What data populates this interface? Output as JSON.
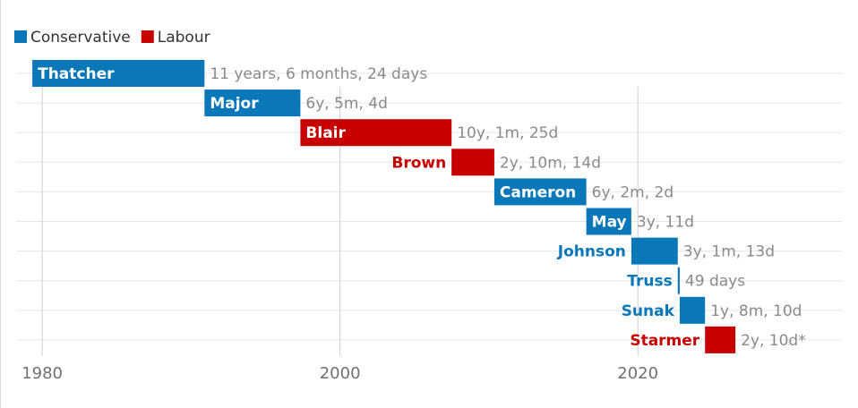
{
  "chart_data": {
    "type": "timeline",
    "legend": [
      {
        "name": "Conservative",
        "color": "#0a77b8"
      },
      {
        "name": "Labour",
        "color": "#c70000"
      }
    ],
    "categories": [
      "Thatcher",
      "Major",
      "Blair",
      "Brown",
      "Cameron",
      "May",
      "Johnson",
      "Truss",
      "Sunak",
      "Starmer"
    ],
    "start": [
      1979.34,
      1990.9,
      1997.34,
      2007.49,
      2010.36,
      2016.54,
      2019.56,
      2022.68,
      2022.81,
      2024.51
    ],
    "end": [
      1990.9,
      1997.34,
      2007.49,
      2010.36,
      2016.54,
      2019.56,
      2022.68,
      2022.81,
      2024.51,
      2026.55
    ],
    "colors": [
      "#0a77b8",
      "#0a77b8",
      "#c70000",
      "#c70000",
      "#0a77b8",
      "#0a77b8",
      "#0a77b8",
      "#0a77b8",
      "#0a77b8",
      "#c70000"
    ],
    "duration_labels": [
      "11 years, 6 months, 24 days",
      "6y, 5m, 4d",
      "10y, 1m, 25d",
      "2y, 10m, 14d",
      "6y, 2m, 2d",
      "3y, 11d",
      "3y, 1m, 13d",
      "49 days",
      "1y, 8m, 10d",
      "2y, 10d*"
    ],
    "xlim": [
      1978.25,
      2033.7
    ],
    "xticks": [
      1980,
      2000,
      2020
    ],
    "grid": true
  }
}
